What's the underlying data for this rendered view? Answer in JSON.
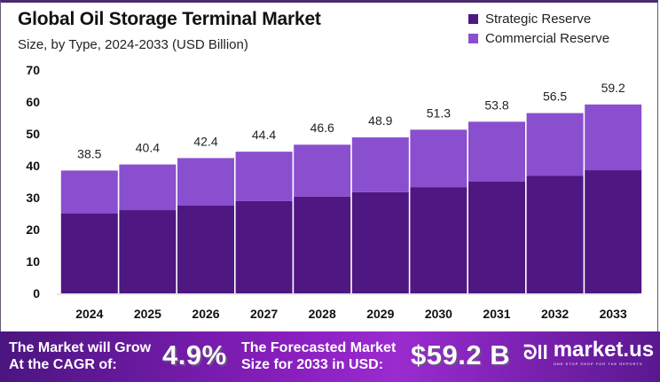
{
  "header": {
    "title": "Global Oil Storage Terminal Market",
    "subtitle": "Size, by Type, 2024-2033 (USD Billion)"
  },
  "colors": {
    "strategic": "#4e1782",
    "commercial": "#8a4fcf",
    "banner_start": "#4b1580",
    "banner_end": "#5a1890"
  },
  "chart_data": {
    "type": "bar",
    "stacked": true,
    "title": "Global Oil Storage Terminal Market",
    "subtitle": "Size, by Type, 2024-2033 (USD Billion)",
    "xlabel": "",
    "ylabel": "",
    "categories": [
      "2024",
      "2025",
      "2026",
      "2027",
      "2028",
      "2029",
      "2030",
      "2031",
      "2032",
      "2033"
    ],
    "series": [
      {
        "name": "Strategic Reserve",
        "values": [
          25.0,
          26.1,
          27.5,
          28.9,
          30.3,
          31.7,
          33.3,
          35.0,
          36.9,
          38.6
        ]
      },
      {
        "name": "Commercial Reserve",
        "values": [
          13.5,
          14.3,
          14.9,
          15.5,
          16.3,
          17.2,
          18.0,
          18.8,
          19.6,
          20.6
        ]
      }
    ],
    "totals": [
      "38.5",
      "40.4",
      "42.4",
      "44.4",
      "46.6",
      "48.9",
      "51.3",
      "53.8",
      "56.5",
      "59.2"
    ],
    "yticks": [
      "0",
      "10",
      "20",
      "30",
      "40",
      "50",
      "60",
      "70"
    ],
    "ylim": [
      0,
      70
    ],
    "grid": false,
    "legend_position": "top-right"
  },
  "banner": {
    "cagr_text_line1": "The Market will Grow",
    "cagr_text_line2": "At the CAGR of:",
    "cagr_value": "4.9%",
    "forecast_text_line1": "The Forecasted Market",
    "forecast_text_line2": "Size for 2033 in USD:",
    "forecast_value": "$59.2 B",
    "logo_mark": "ᘐll",
    "logo_name": "market.us",
    "logo_tagline": "ONE STOP SHOP FOR THE REPORTS"
  }
}
